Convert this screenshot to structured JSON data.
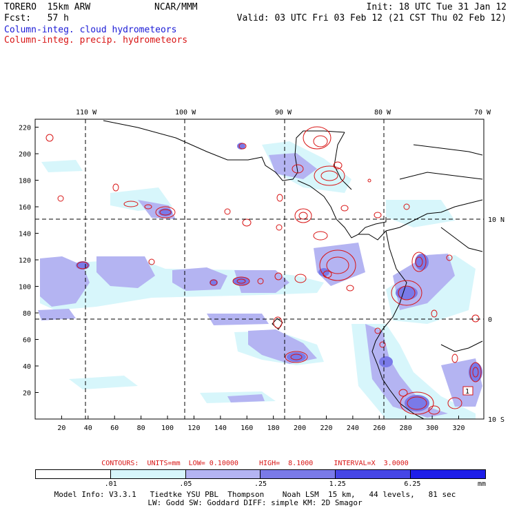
{
  "header": {
    "model": "TORERO  15km ARW",
    "org": "NCAR/MMM",
    "init": "Init: 18 UTC Tue 31 Jan 12",
    "fcst": "Fcst:   57 h",
    "valid": "Valid: 03 UTC Fri 03 Feb 12 (21 CST Thu 02 Feb 12)"
  },
  "legend": {
    "cloud": "Column-integ. cloud hydrometeors",
    "precip": "Column-integ. precip. hydrometeors"
  },
  "axes": {
    "x_ticks": [
      "20",
      "40",
      "60",
      "80",
      "100",
      "120",
      "140",
      "160",
      "180",
      "200",
      "220",
      "240",
      "260",
      "280",
      "300",
      "320"
    ],
    "y_ticks": [
      "20",
      "40",
      "60",
      "80",
      "100",
      "120",
      "140",
      "160",
      "180",
      "200",
      "220"
    ],
    "lon_labels": [
      "110 W",
      "100 W",
      "90 W",
      "80 W",
      "70 W"
    ],
    "lat_labels": [
      "10 N",
      "0",
      "10 S"
    ]
  },
  "contours": {
    "label": "CONTOURS:",
    "units": "UNITS=mm",
    "low": "LOW= 0.10000",
    "high": "HIGH=  8.1000",
    "interval": "INTERVAL=X  3.0000"
  },
  "colorbar": {
    "colors": [
      "#ffffff",
      "#d7f6fb",
      "#b4b4f2",
      "#7a7ae8",
      "#4646e6",
      "#1e1ee8"
    ],
    "labels": [
      ".01",
      ".05",
      ".25",
      "1.25",
      "6.25"
    ],
    "unit": "mm"
  },
  "footer": {
    "line1": "Model Info: V3.3.1   Tiedtke YSU PBL  Thompson    Noah LSM  15 km,   44 levels,   81 sec",
    "line2": "LW: Godd SW: Goddard DIFF: simple KM: 2D Smagor"
  },
  "annotations": {
    "box_label": "1"
  }
}
